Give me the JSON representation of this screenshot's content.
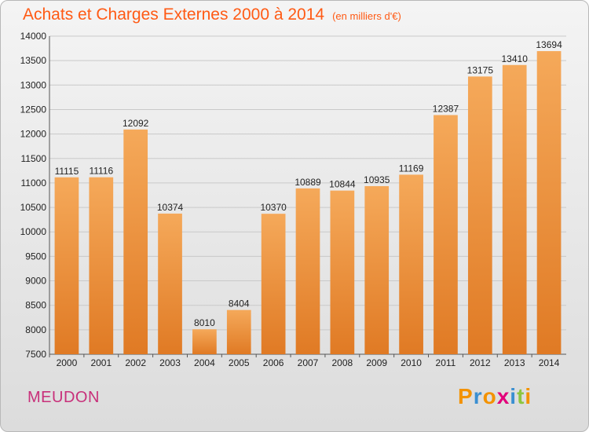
{
  "title": "Achats et Charges Externes 2000 à 2014",
  "unit": "(en milliers d'€)",
  "city": "MEUDON",
  "logo": {
    "text": "Proxiti",
    "letters": [
      {
        "ch": "P",
        "color": "#f39200"
      },
      {
        "ch": "r",
        "color": "#3a8fd1"
      },
      {
        "ch": "o",
        "color": "#f39200"
      },
      {
        "ch": "x",
        "color": "#e2007a"
      },
      {
        "ch": "i",
        "color": "#3a8fd1"
      },
      {
        "ch": "t",
        "color": "#8cc63f"
      },
      {
        "ch": "i",
        "color": "#f39200"
      }
    ]
  },
  "colors": {
    "title": "#ff5a14",
    "city": "#c8307a",
    "bar_light": "#f5a95a",
    "bar_dark": "#e07a24"
  },
  "chart_data": {
    "type": "bar",
    "title": "Achats et Charges Externes 2000 à 2014",
    "subtitle": "(en milliers d'€)",
    "categories": [
      "2000",
      "2001",
      "2002",
      "2003",
      "2004",
      "2005",
      "2006",
      "2007",
      "2008",
      "2009",
      "2010",
      "2011",
      "2012",
      "2013",
      "2014"
    ],
    "values": [
      11115,
      11116,
      12092,
      10374,
      8010,
      8404,
      10370,
      10889,
      10844,
      10935,
      11169,
      12387,
      13175,
      13410,
      13694
    ],
    "ylim": [
      7500,
      14000
    ],
    "yticks": [
      7500,
      8000,
      8500,
      9000,
      9500,
      10000,
      10500,
      11000,
      11500,
      12000,
      12500,
      13000,
      13500,
      14000
    ],
    "grid": true,
    "xlabel": "",
    "ylabel": ""
  }
}
